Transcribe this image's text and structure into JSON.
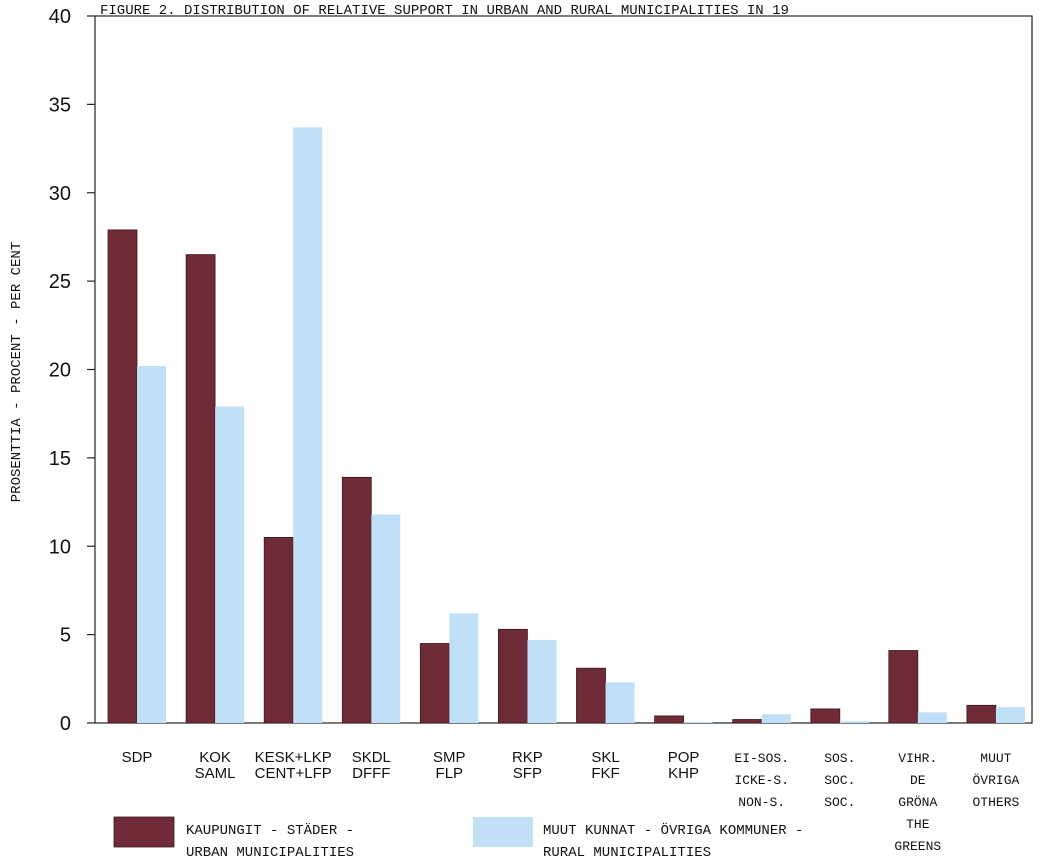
{
  "chart_data": {
    "type": "bar",
    "title": "FIGURE  2. DISTRIBUTION OF RELATIVE SUPPORT IN URBAN AND RURAL MUNICIPALITIES IN 19",
    "ylabel": "PROSENTTIA - PROCENT - PER CENT",
    "xlabel": "",
    "ylim": [
      0,
      40
    ],
    "yticks": [
      0,
      5,
      10,
      15,
      20,
      25,
      30,
      35,
      40
    ],
    "grid": false,
    "categories": [
      [
        "SDP"
      ],
      [
        "KOK",
        "SAML"
      ],
      [
        "KESK+LKP",
        "CENT+LFP"
      ],
      [
        "SKDL",
        "DFFF"
      ],
      [
        "SMP",
        "FLP"
      ],
      [
        "RKP",
        "SFP"
      ],
      [
        "SKL",
        "FKF"
      ],
      [
        "POP",
        "KHP"
      ],
      [
        "EI-SOS.",
        "ICKE-S.",
        "NON-S."
      ],
      [
        "SOS.",
        "SOC.",
        "SOC."
      ],
      [
        "VIHR.",
        "DE",
        "GRÖNA",
        "THE",
        "GREENS"
      ],
      [
        "MUUT",
        "ÖVRIGA",
        "OTHERS"
      ]
    ],
    "series": [
      {
        "name": [
          "KAUPUNGIT - STÄDER -",
          "URBAN MUNICIPALITIES"
        ],
        "color": "#6e2b35",
        "values": [
          27.9,
          26.5,
          10.5,
          13.9,
          4.5,
          5.3,
          3.1,
          0.4,
          0.2,
          0.8,
          4.1,
          1.0
        ]
      },
      {
        "name": [
          "MUUT KUNNAT - ÖVRIGA KOMMUNER -",
          "RURAL MUNICIPALITIES"
        ],
        "color": "#bfe0f7",
        "values": [
          20.2,
          17.9,
          33.7,
          11.8,
          6.2,
          4.7,
          2.3,
          0.05,
          0.5,
          0.1,
          0.6,
          0.9
        ]
      }
    ],
    "legend_position": "bottom"
  }
}
